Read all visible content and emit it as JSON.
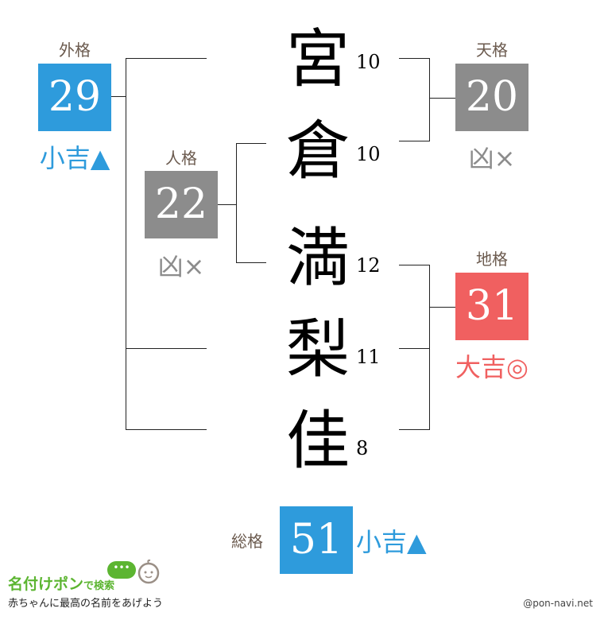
{
  "colors": {
    "good": "#2e9bdc",
    "bad": "#8c8c8c",
    "great": "#f06060",
    "label": "#6b5a4e"
  },
  "name": [
    {
      "char": "宮",
      "strokes": "10"
    },
    {
      "char": "倉",
      "strokes": "10"
    },
    {
      "char": "満",
      "strokes": "12"
    },
    {
      "char": "梨",
      "strokes": "11"
    },
    {
      "char": "佳",
      "strokes": "8"
    }
  ],
  "gaikaku": {
    "label": "外格",
    "value": "29",
    "result": "小吉▲"
  },
  "jinkaku": {
    "label": "人格",
    "value": "22",
    "result": "凶×"
  },
  "tenkaku": {
    "label": "天格",
    "value": "20",
    "result": "凶×"
  },
  "chikaku": {
    "label": "地格",
    "value": "31",
    "result": "大吉◎"
  },
  "soukaku": {
    "label": "総格",
    "value": "51",
    "result": "小吉▲"
  },
  "footer": {
    "logo_main": "名付けポン",
    "logo_sub": "で検索",
    "tagline": "赤ちゃんに最高の名前をあげよう",
    "site": "@pon-navi.net"
  }
}
